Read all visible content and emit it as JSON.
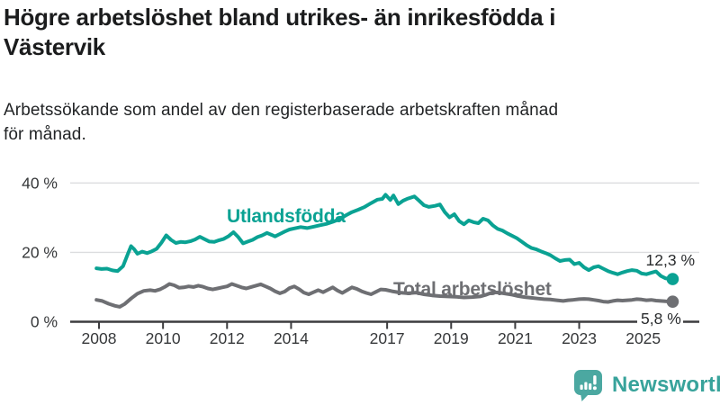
{
  "header": {
    "title_lines": [
      "Högre arbetslöshet bland utrikes- än inrikesfödda i",
      "Västervik"
    ],
    "subtitle_lines": [
      "Arbetssökande som andel av den registerbaserade arbetskraften månad",
      "för månad."
    ]
  },
  "branding": {
    "name": "Newsworthy",
    "icon": "newsworthy-speech-bubble-bar-chart-icon",
    "icon_color": "#4ba8a1",
    "text_color": "#38a39b"
  },
  "chart_data": {
    "type": "line",
    "title": "Högre arbetslöshet bland utrikes- än inrikesfödda i Västervik",
    "subtitle": "Arbetssökande som andel av den registerbaserade arbetskraften månad för månad.",
    "xlabel": "",
    "ylabel": "",
    "y_unit": "%",
    "grid": "horizontal",
    "legend_position": "inline-labels",
    "xlim": [
      2007.9,
      2026.2
    ],
    "ylim": [
      0,
      42
    ],
    "x_ticks": [
      2008,
      2010,
      2012,
      2014,
      2017,
      2019,
      2021,
      2023,
      2025
    ],
    "y_ticks": [
      0,
      20,
      40
    ],
    "y_tick_labels": [
      "0 %",
      "20 %",
      "40 %"
    ],
    "axis_color": "#3c3c3e",
    "grid_color": "#dcdddf",
    "tick_label_color": "#36383a",
    "series": [
      {
        "name": "Utlandsfödda",
        "color": "#0aa293",
        "end_label": "12,3 %",
        "end_value": 12.3,
        "points": [
          [
            2007.92,
            15.4
          ],
          [
            2008.08,
            15.2
          ],
          [
            2008.25,
            15.3
          ],
          [
            2008.42,
            14.8
          ],
          [
            2008.58,
            14.6
          ],
          [
            2008.75,
            16.0
          ],
          [
            2008.9,
            19.5
          ],
          [
            2009.0,
            21.8
          ],
          [
            2009.1,
            20.9
          ],
          [
            2009.2,
            19.6
          ],
          [
            2009.35,
            20.2
          ],
          [
            2009.5,
            19.8
          ],
          [
            2009.65,
            20.3
          ],
          [
            2009.8,
            21.0
          ],
          [
            2009.95,
            22.8
          ],
          [
            2010.1,
            24.9
          ],
          [
            2010.25,
            23.6
          ],
          [
            2010.4,
            22.7
          ],
          [
            2010.55,
            23.0
          ],
          [
            2010.7,
            22.9
          ],
          [
            2010.85,
            23.2
          ],
          [
            2011.0,
            23.7
          ],
          [
            2011.15,
            24.5
          ],
          [
            2011.3,
            23.8
          ],
          [
            2011.45,
            23.1
          ],
          [
            2011.6,
            23.0
          ],
          [
            2011.75,
            23.5
          ],
          [
            2011.9,
            23.9
          ],
          [
            2012.05,
            24.7
          ],
          [
            2012.2,
            25.8
          ],
          [
            2012.35,
            24.4
          ],
          [
            2012.5,
            22.6
          ],
          [
            2012.65,
            23.1
          ],
          [
            2012.8,
            23.6
          ],
          [
            2012.95,
            24.4
          ],
          [
            2013.1,
            24.9
          ],
          [
            2013.25,
            25.6
          ],
          [
            2013.4,
            25.0
          ],
          [
            2013.5,
            24.6
          ],
          [
            2013.65,
            25.3
          ],
          [
            2013.8,
            26.0
          ],
          [
            2013.95,
            26.6
          ],
          [
            2014.1,
            26.9
          ],
          [
            2014.3,
            27.3
          ],
          [
            2014.5,
            27.0
          ],
          [
            2014.7,
            27.4
          ],
          [
            2014.9,
            27.8
          ],
          [
            2015.1,
            28.2
          ],
          [
            2015.3,
            28.8
          ],
          [
            2015.5,
            29.5
          ],
          [
            2015.7,
            30.6
          ],
          [
            2015.9,
            31.6
          ],
          [
            2016.1,
            32.3
          ],
          [
            2016.3,
            33.1
          ],
          [
            2016.5,
            34.2
          ],
          [
            2016.7,
            35.2
          ],
          [
            2016.85,
            35.4
          ],
          [
            2016.95,
            36.6
          ],
          [
            2017.1,
            35.1
          ],
          [
            2017.2,
            36.4
          ],
          [
            2017.35,
            33.9
          ],
          [
            2017.5,
            34.9
          ],
          [
            2017.65,
            35.5
          ],
          [
            2017.85,
            36.1
          ],
          [
            2018.0,
            34.9
          ],
          [
            2018.15,
            33.6
          ],
          [
            2018.3,
            33.1
          ],
          [
            2018.5,
            33.4
          ],
          [
            2018.65,
            33.8
          ],
          [
            2018.8,
            31.6
          ],
          [
            2018.95,
            30.1
          ],
          [
            2019.1,
            31.0
          ],
          [
            2019.25,
            29.0
          ],
          [
            2019.4,
            28.1
          ],
          [
            2019.55,
            29.2
          ],
          [
            2019.7,
            28.7
          ],
          [
            2019.85,
            28.4
          ],
          [
            2020.0,
            29.7
          ],
          [
            2020.15,
            29.2
          ],
          [
            2020.3,
            27.8
          ],
          [
            2020.45,
            26.8
          ],
          [
            2020.6,
            26.3
          ],
          [
            2020.75,
            25.5
          ],
          [
            2020.9,
            24.8
          ],
          [
            2021.05,
            24.1
          ],
          [
            2021.2,
            23.1
          ],
          [
            2021.35,
            22.1
          ],
          [
            2021.5,
            21.3
          ],
          [
            2021.65,
            20.9
          ],
          [
            2021.8,
            20.3
          ],
          [
            2021.95,
            19.8
          ],
          [
            2022.1,
            19.2
          ],
          [
            2022.25,
            18.3
          ],
          [
            2022.4,
            17.5
          ],
          [
            2022.55,
            17.8
          ],
          [
            2022.7,
            17.9
          ],
          [
            2022.85,
            16.6
          ],
          [
            2023.0,
            17.0
          ],
          [
            2023.15,
            15.7
          ],
          [
            2023.3,
            14.9
          ],
          [
            2023.45,
            15.7
          ],
          [
            2023.6,
            16.0
          ],
          [
            2023.75,
            15.3
          ],
          [
            2023.9,
            14.6
          ],
          [
            2024.05,
            14.1
          ],
          [
            2024.2,
            13.7
          ],
          [
            2024.35,
            14.2
          ],
          [
            2024.5,
            14.6
          ],
          [
            2024.65,
            14.9
          ],
          [
            2024.8,
            14.7
          ],
          [
            2024.95,
            13.9
          ],
          [
            2025.1,
            13.7
          ],
          [
            2025.25,
            14.1
          ],
          [
            2025.4,
            14.5
          ],
          [
            2025.55,
            13.2
          ],
          [
            2025.7,
            12.5
          ],
          [
            2025.92,
            12.3
          ]
        ]
      },
      {
        "name": "Total arbetslöshet",
        "color": "#6e6f73",
        "end_label": "5,8 %",
        "end_value": 5.8,
        "points": [
          [
            2007.92,
            6.3
          ],
          [
            2008.1,
            6.0
          ],
          [
            2008.3,
            5.2
          ],
          [
            2008.5,
            4.6
          ],
          [
            2008.65,
            4.3
          ],
          [
            2008.8,
            5.1
          ],
          [
            2009.0,
            6.7
          ],
          [
            2009.2,
            8.1
          ],
          [
            2009.4,
            8.9
          ],
          [
            2009.6,
            9.1
          ],
          [
            2009.75,
            8.9
          ],
          [
            2009.9,
            9.3
          ],
          [
            2010.05,
            10.0
          ],
          [
            2010.2,
            10.9
          ],
          [
            2010.35,
            10.5
          ],
          [
            2010.5,
            9.8
          ],
          [
            2010.65,
            9.9
          ],
          [
            2010.8,
            10.2
          ],
          [
            2010.95,
            10.0
          ],
          [
            2011.1,
            10.4
          ],
          [
            2011.25,
            10.1
          ],
          [
            2011.4,
            9.6
          ],
          [
            2011.55,
            9.3
          ],
          [
            2011.7,
            9.6
          ],
          [
            2011.85,
            9.9
          ],
          [
            2012.0,
            10.2
          ],
          [
            2012.15,
            10.9
          ],
          [
            2012.3,
            10.4
          ],
          [
            2012.45,
            9.9
          ],
          [
            2012.6,
            9.6
          ],
          [
            2012.75,
            10.0
          ],
          [
            2012.9,
            10.4
          ],
          [
            2013.05,
            10.8
          ],
          [
            2013.2,
            10.2
          ],
          [
            2013.35,
            9.6
          ],
          [
            2013.5,
            8.8
          ],
          [
            2013.65,
            8.2
          ],
          [
            2013.8,
            8.7
          ],
          [
            2013.95,
            9.7
          ],
          [
            2014.1,
            10.2
          ],
          [
            2014.25,
            9.4
          ],
          [
            2014.4,
            8.4
          ],
          [
            2014.55,
            7.9
          ],
          [
            2014.7,
            8.5
          ],
          [
            2014.85,
            9.1
          ],
          [
            2015.0,
            8.5
          ],
          [
            2015.15,
            9.2
          ],
          [
            2015.3,
            9.9
          ],
          [
            2015.45,
            9.0
          ],
          [
            2015.6,
            8.3
          ],
          [
            2015.75,
            9.1
          ],
          [
            2015.9,
            9.9
          ],
          [
            2016.05,
            9.5
          ],
          [
            2016.2,
            8.8
          ],
          [
            2016.35,
            8.3
          ],
          [
            2016.5,
            7.9
          ],
          [
            2016.65,
            8.6
          ],
          [
            2016.8,
            9.3
          ],
          [
            2016.95,
            9.2
          ],
          [
            2017.15,
            8.8
          ],
          [
            2017.4,
            8.4
          ],
          [
            2017.65,
            8.2
          ],
          [
            2017.9,
            8.4
          ],
          [
            2018.15,
            7.9
          ],
          [
            2018.4,
            7.6
          ],
          [
            2018.65,
            7.4
          ],
          [
            2018.9,
            7.3
          ],
          [
            2019.15,
            7.2
          ],
          [
            2019.4,
            7.0
          ],
          [
            2019.65,
            7.1
          ],
          [
            2019.9,
            7.3
          ],
          [
            2020.1,
            7.8
          ],
          [
            2020.3,
            8.5
          ],
          [
            2020.5,
            8.4
          ],
          [
            2020.7,
            8.1
          ],
          [
            2020.9,
            7.8
          ],
          [
            2021.1,
            7.4
          ],
          [
            2021.3,
            7.1
          ],
          [
            2021.5,
            6.9
          ],
          [
            2021.7,
            6.7
          ],
          [
            2021.9,
            6.5
          ],
          [
            2022.1,
            6.4
          ],
          [
            2022.3,
            6.2
          ],
          [
            2022.5,
            6.0
          ],
          [
            2022.65,
            6.2
          ],
          [
            2022.8,
            6.3
          ],
          [
            2023.0,
            6.5
          ],
          [
            2023.15,
            6.6
          ],
          [
            2023.3,
            6.5
          ],
          [
            2023.45,
            6.3
          ],
          [
            2023.6,
            6.1
          ],
          [
            2023.75,
            5.8
          ],
          [
            2023.9,
            5.7
          ],
          [
            2024.05,
            6.0
          ],
          [
            2024.2,
            6.2
          ],
          [
            2024.35,
            6.1
          ],
          [
            2024.5,
            6.2
          ],
          [
            2024.65,
            6.3
          ],
          [
            2024.8,
            6.5
          ],
          [
            2024.95,
            6.4
          ],
          [
            2025.1,
            6.2
          ],
          [
            2025.25,
            6.3
          ],
          [
            2025.4,
            6.1
          ],
          [
            2025.55,
            6.0
          ],
          [
            2025.7,
            5.9
          ],
          [
            2025.92,
            5.8
          ]
        ]
      }
    ]
  }
}
